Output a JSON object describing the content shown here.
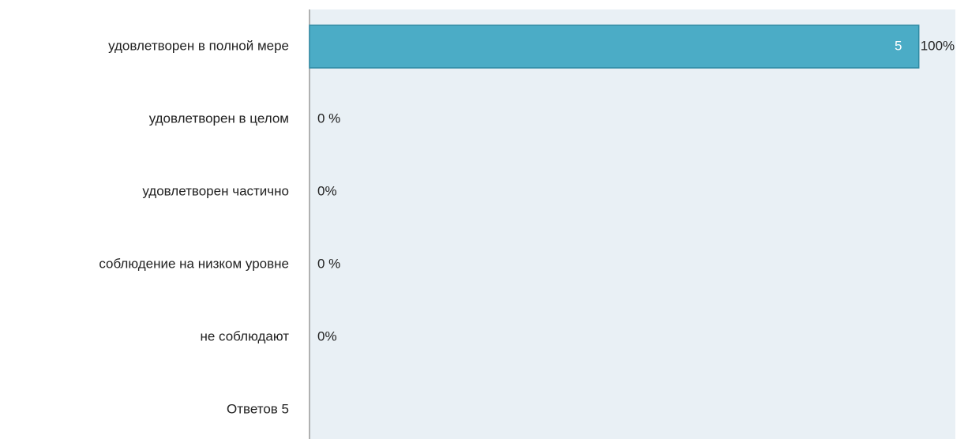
{
  "chart_data": {
    "type": "bar",
    "orientation": "horizontal",
    "categories": [
      "удовлетворен в полной мере",
      "удовлетворен в целом",
      "удовлетворен частично",
      "соблюдение на низком уровне",
      "не соблюдают"
    ],
    "values": [
      5,
      0,
      0,
      0,
      0
    ],
    "percentages": [
      100,
      0,
      0,
      0,
      0
    ],
    "percentage_labels": [
      "100%",
      "0 %",
      "0%",
      "0 %",
      "0%"
    ],
    "footer": "Ответов 5",
    "color": "#4bacc6",
    "xlim": [
      0,
      5.3
    ]
  }
}
